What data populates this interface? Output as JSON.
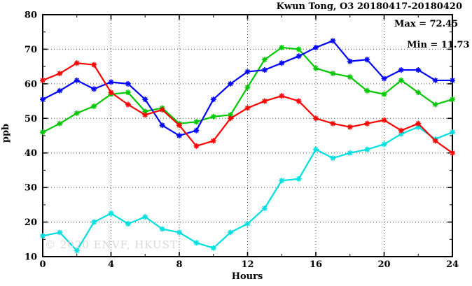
{
  "chart_data": {
    "type": "line",
    "title": "Kwun Tong, O3 20180417-20180420",
    "xlabel": "Hours",
    "ylabel": "ppb",
    "xlim": [
      0,
      24
    ],
    "ylim": [
      10,
      80
    ],
    "x_major_ticks": [
      0,
      4,
      8,
      12,
      16,
      20,
      24
    ],
    "x_minor_step": 2,
    "y_major_ticks": [
      10,
      20,
      30,
      40,
      50,
      60,
      70,
      80
    ],
    "y_minor_step": 5,
    "grid": "dotted-at-major-ticks",
    "legend_position": "none",
    "marker": "asterisk",
    "annotations": {
      "max_label": "Max = 72.45",
      "min_label": "Min = 11.73"
    },
    "watermark": "© 2020 ENVF, HKUST",
    "max_value": 72.45,
    "min_value": 11.73,
    "x": [
      0,
      1,
      2,
      3,
      4,
      5,
      6,
      7,
      8,
      9,
      10,
      11,
      12,
      13,
      14,
      15,
      16,
      17,
      18,
      19,
      20,
      21,
      22,
      23,
      24
    ],
    "series": [
      {
        "name": "series-green",
        "color": "#00c800",
        "values": [
          46,
          48.5,
          51.5,
          53.5,
          57,
          57.5,
          52,
          53,
          48.5,
          49,
          50.5,
          51,
          59,
          67,
          70.5,
          70,
          64.5,
          63,
          62,
          58,
          57,
          61,
          57.5,
          54,
          55.5
        ]
      },
      {
        "name": "series-cyan",
        "color": "#00e0e0",
        "values": [
          16,
          17,
          11.73,
          20,
          22.5,
          19.5,
          21.5,
          18,
          17,
          14,
          12.5,
          17,
          19.5,
          24,
          32,
          32.5,
          41,
          38.5,
          40,
          41,
          42.5,
          45.5,
          47.5,
          44,
          46
        ]
      },
      {
        "name": "series-blue",
        "color": "#0000ff",
        "values": [
          55.5,
          58,
          61,
          58.5,
          60.5,
          60,
          55.5,
          48,
          45,
          46.5,
          55.5,
          60,
          63.5,
          64,
          66,
          68,
          70.5,
          72.45,
          66.5,
          67,
          61.5,
          64,
          64,
          61,
          61
        ]
      },
      {
        "name": "series-red",
        "color": "#ff0000",
        "values": [
          61,
          63,
          66,
          65.5,
          57.5,
          54,
          51,
          52.5,
          48,
          42,
          43.5,
          50,
          53,
          55,
          56.5,
          55,
          50,
          48.5,
          47.5,
          48.5,
          49.5,
          46.5,
          48.5,
          43.5,
          40
        ]
      }
    ]
  }
}
